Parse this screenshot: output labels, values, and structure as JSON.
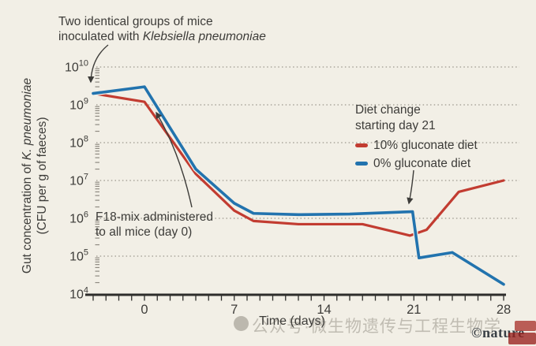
{
  "figure": {
    "background": "#f2efe6",
    "text_color": "#3d3c39",
    "grid_color": "#9b978d",
    "axis_color": "#2e2d2b"
  },
  "annotations": {
    "inoculation": {
      "line1": "Two identical groups of mice",
      "line2_prefix": "inoculated with ",
      "line2_italic": "Klebsiella pneumoniae"
    },
    "f18": {
      "line1": "F18-mix administered",
      "line2": "to all mice (day 0)"
    },
    "diet_change": {
      "line1": "Diet change",
      "line2": "starting day 21"
    }
  },
  "legend": {
    "items": [
      {
        "label": "10% gluconate diet",
        "color": "#c23c31"
      },
      {
        "label": "0% gluconate diet",
        "color": "#2273ae"
      }
    ]
  },
  "y_axis": {
    "title_prefix": "Gut concentration of ",
    "title_italic": "K. pneumoniae",
    "title_line2": "(CFU per g of faeces)"
  },
  "x_axis": {
    "label": "Time (days)"
  },
  "watermark": {
    "text": "公众号·微生物遗传与工程生物学"
  },
  "credit": "©nature",
  "chart_data": {
    "type": "line",
    "title": "",
    "xlabel": "Time (days)",
    "ylabel": "Gut concentration of K. pneumoniae (CFU per g of faeces)",
    "y_scale": "log10",
    "x_range_days": [
      -4,
      28
    ],
    "y_range": [
      10000,
      10000000000
    ],
    "x_ticks": [
      0,
      7,
      14,
      21,
      28
    ],
    "y_tick_exponents": [
      10,
      9,
      8,
      7,
      6,
      5,
      4
    ],
    "grid": "dotted horizontal line at each decade",
    "legend_position": "upper right",
    "series": [
      {
        "name": "10% gluconate diet",
        "color": "#c23c31",
        "points": [
          [
            -4,
            2000000000.0
          ],
          [
            0,
            1200000000.0
          ],
          [
            4,
            15000000.0
          ],
          [
            7,
            1600000.0
          ],
          [
            8.5,
            850000.0
          ],
          [
            12,
            700000.0
          ],
          [
            17,
            700000.0
          ],
          [
            20.7,
            350000.0
          ],
          [
            22,
            500000.0
          ],
          [
            24.5,
            5000000.0
          ],
          [
            28,
            10000000.0
          ]
        ]
      },
      {
        "name": "0% gluconate diet",
        "color": "#2273ae",
        "points": [
          [
            -4,
            2000000000.0
          ],
          [
            0,
            3000000000.0
          ],
          [
            4,
            20000000.0
          ],
          [
            7,
            2500000.0
          ],
          [
            8.5,
            1350000.0
          ],
          [
            12,
            1250000.0
          ],
          [
            16,
            1300000.0
          ],
          [
            20.9,
            1500000.0
          ],
          [
            21.4,
            90000.0
          ],
          [
            24,
            125000.0
          ],
          [
            28,
            18000.0
          ]
        ]
      }
    ],
    "events": [
      {
        "day": 0,
        "label": "F18-mix administered to all mice"
      },
      {
        "day": 21,
        "label": "Diet change starting day 21"
      }
    ]
  }
}
